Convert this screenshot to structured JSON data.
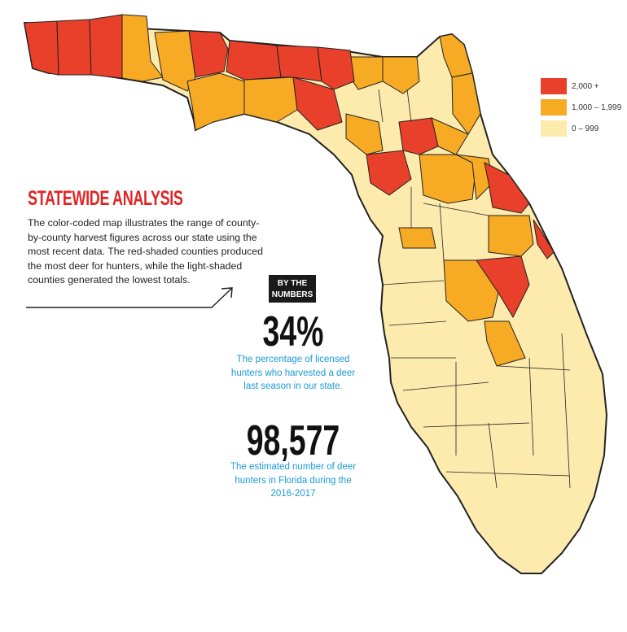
{
  "legend": {
    "items": [
      {
        "label": "2,000 +",
        "color": "#e8402a"
      },
      {
        "label": "1,000 – 1,999",
        "color": "#f7aa24"
      },
      {
        "label": "0 – 999",
        "color": "#fcebad"
      }
    ]
  },
  "analysis": {
    "title": "STATEWIDE ANALYSIS",
    "description": "The color-coded map illustrates the range of county-by-county harvest figures across our state using the most recent data. The red-shaded counties produced the most deer for hunters, while the light-shaded counties generated the lowest totals."
  },
  "by_the_numbers": {
    "badge_line1": "BY THE",
    "badge_line2": "NUMBERS",
    "stats": [
      {
        "value": "34%",
        "description": "The percentage of licensed hunters who harvested a deer last season in our state."
      },
      {
        "value": "98,577",
        "description": "The estimated number of deer hunters in Florida during the 2016-2017"
      }
    ]
  },
  "colors": {
    "high": "#e8402a",
    "mid": "#f7aa24",
    "low": "#fcebad",
    "outline": "#222222",
    "accent": "#e02525",
    "stat_text": "#1a9bd7"
  }
}
